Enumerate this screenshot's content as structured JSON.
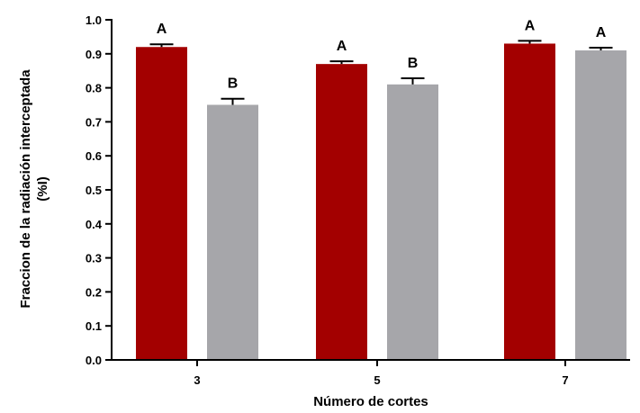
{
  "chart_data": {
    "type": "bar",
    "title": "",
    "xlabel": "Número de cortes",
    "ylabel_line1": "Fraccion de la  radiación interceptada",
    "ylabel_line2": "(%I)",
    "ylim": [
      0,
      1.0
    ],
    "yticks": [
      "0.0",
      "0.1",
      "0.2",
      "0.3",
      "0.4",
      "0.5",
      "0.6",
      "0.7",
      "0.8",
      "0.9",
      "1.0"
    ],
    "categories": [
      "3",
      "5",
      "7"
    ],
    "series": [
      {
        "color": "#a30000",
        "values": [
          0.92,
          0.87,
          0.93
        ],
        "errors": [
          0.008,
          0.008,
          0.008
        ],
        "letters": [
          "A",
          "A",
          "A"
        ]
      },
      {
        "color": "#a6a6aa",
        "values": [
          0.75,
          0.81,
          0.91
        ],
        "errors": [
          0.018,
          0.018,
          0.008
        ],
        "letters": [
          "B",
          "B",
          "A"
        ]
      }
    ],
    "grid": false,
    "legend": "none"
  }
}
